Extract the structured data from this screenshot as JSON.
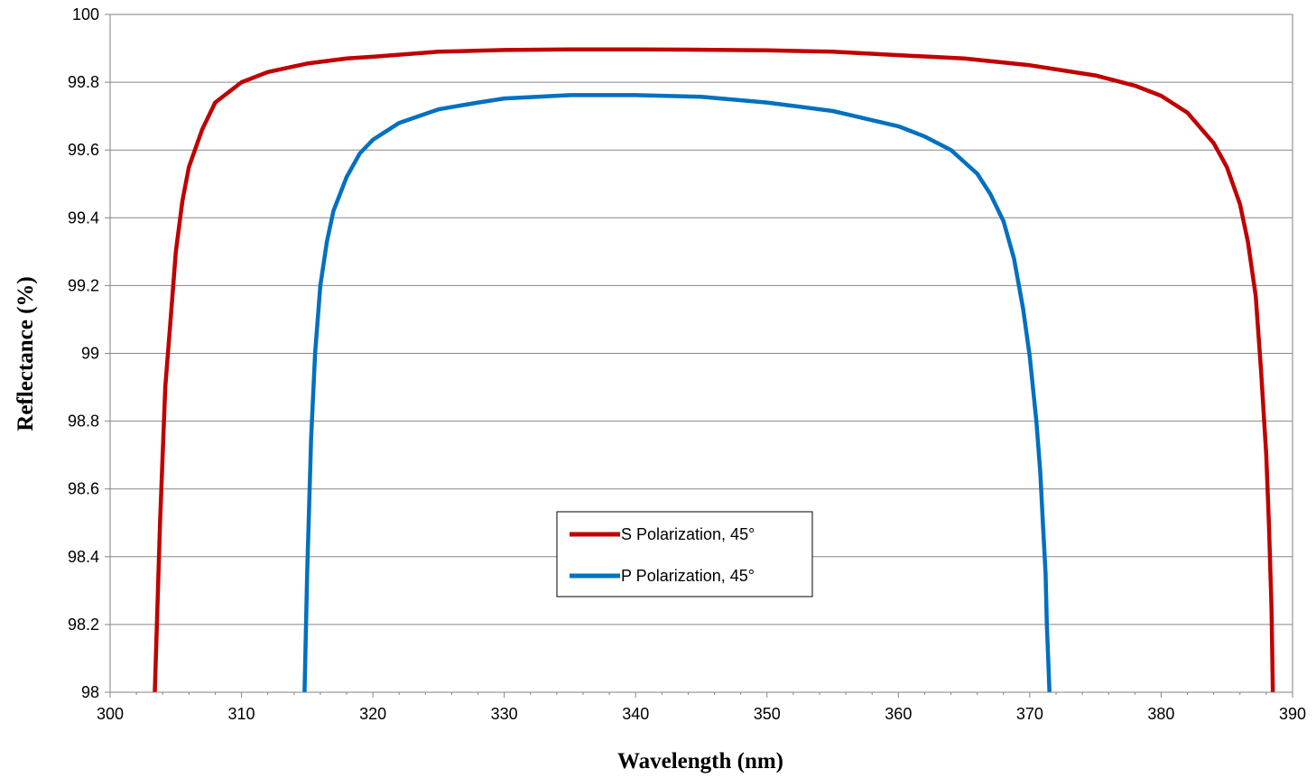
{
  "chart_data": {
    "type": "line",
    "title": "",
    "xlabel": "Wavelength (nm)",
    "ylabel": "Reflectance (%)",
    "xlim": [
      300,
      390
    ],
    "ylim": [
      98,
      100
    ],
    "x_ticks": [
      "300",
      "310",
      "320",
      "330",
      "340",
      "350",
      "360",
      "370",
      "380",
      "390"
    ],
    "y_ticks": [
      "98",
      "98.2",
      "98.4",
      "98.6",
      "98.8",
      "99",
      "99.2",
      "99.4",
      "99.6",
      "99.8",
      "100"
    ],
    "grid": "horizontal",
    "legend_position": "center-bottom",
    "series": [
      {
        "name": "S Polarization, 45°",
        "color": "#c00000",
        "x": [
          303.4,
          303.8,
          304.2,
          304.6,
          305.0,
          305.5,
          306.0,
          307.0,
          308.0,
          310.0,
          312.0,
          315.0,
          318.0,
          320.0,
          325.0,
          330.0,
          335.0,
          340.0,
          345.0,
          350.0,
          355.0,
          360.0,
          365.0,
          370.0,
          375.0,
          378.0,
          380.0,
          382.0,
          384.0,
          385.0,
          386.0,
          386.6,
          387.2,
          387.6,
          388.0,
          388.2,
          388.4,
          388.5
        ],
        "y": [
          98.0,
          98.5,
          98.9,
          99.1,
          99.3,
          99.45,
          99.55,
          99.66,
          99.74,
          99.8,
          99.83,
          99.855,
          99.87,
          99.875,
          99.89,
          99.895,
          99.897,
          99.897,
          99.896,
          99.894,
          99.89,
          99.88,
          99.87,
          99.85,
          99.82,
          99.79,
          99.76,
          99.71,
          99.62,
          99.55,
          99.44,
          99.33,
          99.17,
          98.95,
          98.7,
          98.5,
          98.25,
          98.0
        ]
      },
      {
        "name": "P Polarization, 45°",
        "color": "#0070c0",
        "x": [
          314.8,
          315.0,
          315.3,
          315.6,
          316.0,
          316.5,
          317.0,
          318.0,
          319.0,
          320.0,
          322.0,
          325.0,
          328.0,
          330.0,
          335.0,
          340.0,
          345.0,
          350.0,
          355.0,
          360.0,
          362.0,
          364.0,
          366.0,
          367.0,
          368.0,
          368.8,
          369.5,
          370.0,
          370.5,
          370.8,
          371.0,
          371.2,
          371.3,
          371.4,
          371.5
        ],
        "y": [
          98.0,
          98.35,
          98.75,
          99.0,
          99.2,
          99.33,
          99.42,
          99.52,
          99.59,
          99.63,
          99.68,
          99.72,
          99.74,
          99.752,
          99.762,
          99.762,
          99.757,
          99.74,
          99.715,
          99.67,
          99.64,
          99.6,
          99.53,
          99.47,
          99.39,
          99.28,
          99.13,
          98.99,
          98.8,
          98.65,
          98.5,
          98.35,
          98.2,
          98.1,
          98.0
        ]
      }
    ]
  }
}
